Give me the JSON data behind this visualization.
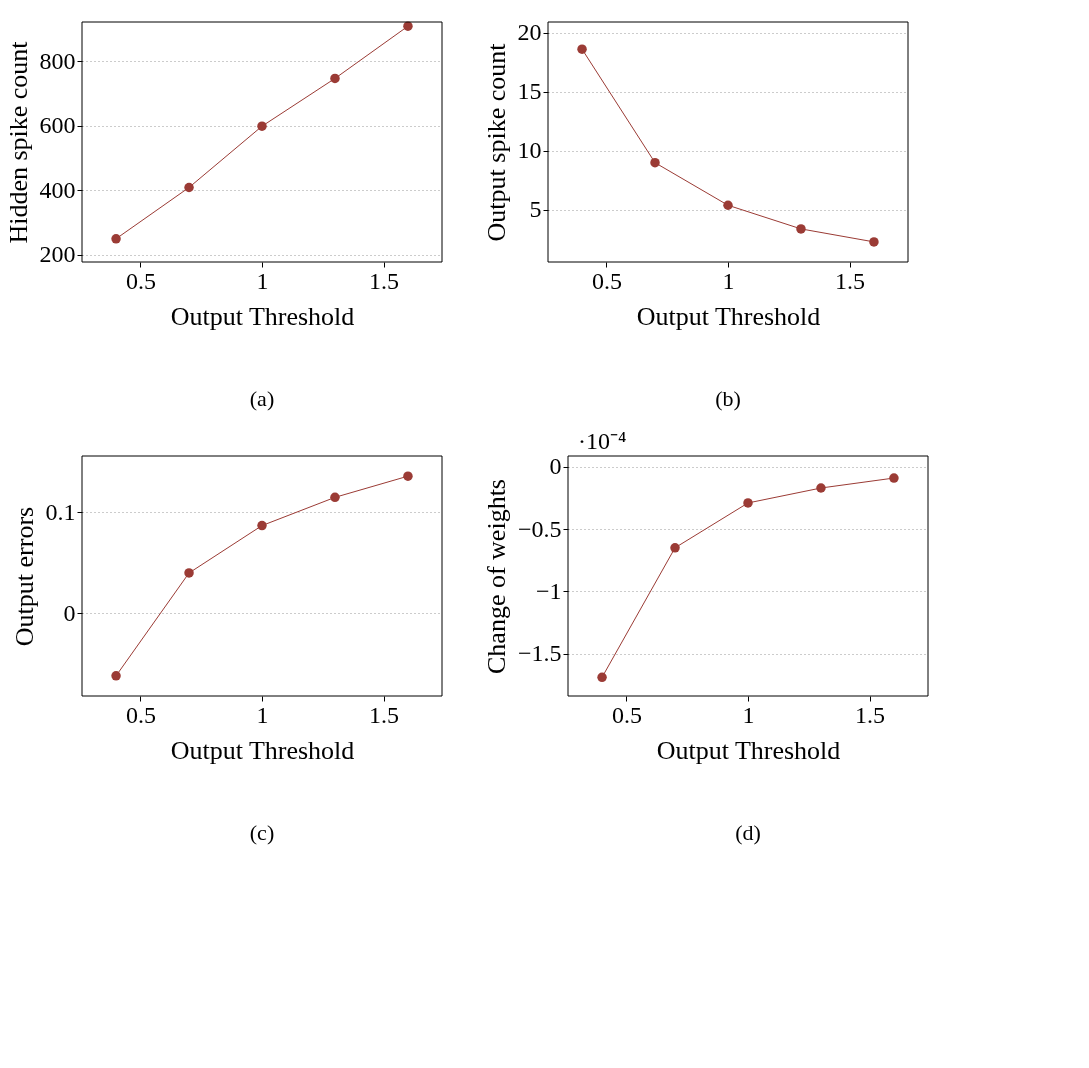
{
  "chart_data": [
    {
      "type": "line",
      "xlabel": "Output Threshold",
      "ylabel": "Hidden spike count",
      "x": [
        0.4,
        0.7,
        1.0,
        1.3,
        1.6
      ],
      "series": [
        {
          "color": "#9b3b35",
          "values": [
            250,
            409,
            599,
            747,
            909
          ]
        }
      ],
      "xlim": [
        0.26,
        1.74
      ],
      "xticks": [
        0.5,
        1,
        1.5
      ],
      "ylim": [
        178,
        922
      ],
      "yticks": [
        200,
        400,
        600,
        800
      ],
      "grid": "y",
      "marker": "circle",
      "line_style": "solid",
      "annotations": [
        "(a)"
      ]
    },
    {
      "type": "line",
      "xlabel": "Output Threshold",
      "ylabel": "Output spike count",
      "x": [
        0.4,
        0.7,
        1.0,
        1.3,
        1.6
      ],
      "series": [
        {
          "color": "#9b3b35",
          "values": [
            18.6,
            9.0,
            5.4,
            3.4,
            2.3
          ]
        }
      ],
      "xlim": [
        0.26,
        1.74
      ],
      "xticks": [
        0.5,
        1,
        1.5
      ],
      "ylim": [
        0.6,
        20.9
      ],
      "yticks": [
        5,
        10,
        15,
        20
      ],
      "grid": "y",
      "marker": "circle",
      "line_style": "solid",
      "annotations": [
        "(b)"
      ]
    },
    {
      "type": "line",
      "xlabel": "Output Threshold",
      "ylabel": "Output errors",
      "x": [
        0.4,
        0.7,
        1.0,
        1.3,
        1.6
      ],
      "series": [
        {
          "color": "#9b3b35",
          "values": [
            -0.062,
            0.04,
            0.087,
            0.115,
            0.136
          ]
        }
      ],
      "xlim": [
        0.26,
        1.74
      ],
      "xticks": [
        0.5,
        1,
        1.5
      ],
      "ylim": [
        -0.082,
        0.156
      ],
      "yticks": [
        0,
        0.1
      ],
      "grid": "y",
      "marker": "circle",
      "line_style": "solid",
      "annotations": [
        "(c)"
      ]
    },
    {
      "type": "line",
      "xlabel": "Output Threshold",
      "ylabel": "Change of weights",
      "x": [
        0.4,
        0.7,
        1.0,
        1.3,
        1.6
      ],
      "series": [
        {
          "color": "#9b3b35",
          "values": [
            -1.69,
            -0.65,
            -0.29,
            -0.17,
            -0.09
          ]
        }
      ],
      "xlim": [
        0.26,
        1.74
      ],
      "xticks": [
        0.5,
        1,
        1.5
      ],
      "ylim": [
        -1.84,
        0.087
      ],
      "yticks": [
        0,
        -0.5,
        -1,
        -1.5
      ],
      "grid": "y",
      "marker": "circle",
      "line_style": "solid",
      "annotations": [
        "·10⁻⁴",
        "(d)"
      ]
    }
  ]
}
